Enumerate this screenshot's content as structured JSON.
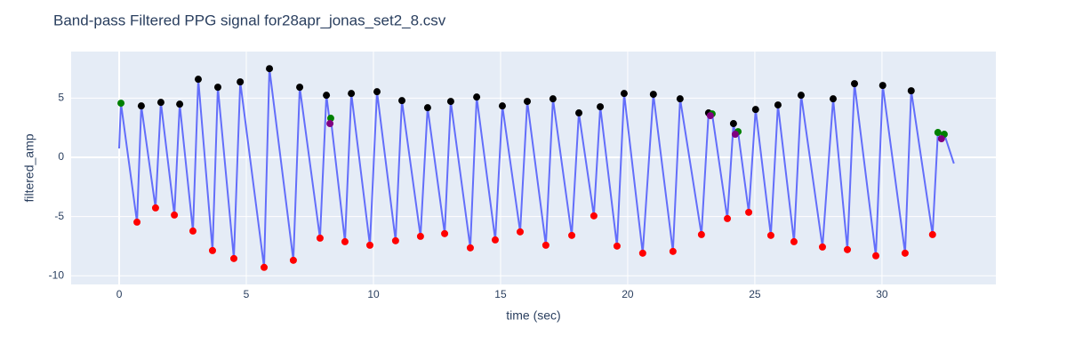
{
  "chart_data": {
    "type": "scatter",
    "title": "Band-pass Filtered PPG signal for28apr_jonas_set2_8.csv",
    "xlabel": "time (sec)",
    "ylabel": "filtered_amp",
    "xlim": [
      -1.89,
      34.48
    ],
    "ylim": [
      -10.73,
      8.93
    ],
    "xticks": [
      0,
      5,
      10,
      15,
      20,
      25,
      30
    ],
    "yticks": [
      -10,
      -5,
      0,
      5
    ],
    "grid": true,
    "zeroline": true,
    "background": "#e5ecf6",
    "series": [
      {
        "mode": "lines",
        "color": "#636efa",
        "x": [
          0,
          0.07,
          0.7,
          0.87,
          1.43,
          1.64,
          2.17,
          2.38,
          2.9,
          3.11,
          3.67,
          3.88,
          4.51,
          4.76,
          5.7,
          5.91,
          6.85,
          7.1,
          7.9,
          8.15,
          8.29,
          8.32,
          8.88,
          9.13,
          9.86,
          10.14,
          10.87,
          11.12,
          11.85,
          12.13,
          12.8,
          13.04,
          13.81,
          14.06,
          14.79,
          15.07,
          15.77,
          16.05,
          16.78,
          17.06,
          17.8,
          18.08,
          18.67,
          18.92,
          19.58,
          19.86,
          20.59,
          21.01,
          21.78,
          22.06,
          22.9,
          23.18,
          23.25,
          23.32,
          23.92,
          24.16,
          24.23,
          24.34,
          24.76,
          25.03,
          25.63,
          25.91,
          26.54,
          26.82,
          27.66,
          28.08,
          28.64,
          28.92,
          29.76,
          30.03,
          30.91,
          31.15,
          31.99,
          32.2,
          32.34,
          32.45,
          32.83
        ],
        "y": [
          0.75,
          4.57,
          -5.47,
          4.34,
          -4.27,
          4.64,
          -4.87,
          4.49,
          -6.22,
          6.59,
          -7.87,
          5.92,
          -8.54,
          6.37,
          -9.29,
          7.49,
          -8.69,
          5.92,
          -6.82,
          5.24,
          2.85,
          3.3,
          -7.12,
          5.39,
          -7.42,
          5.54,
          -7.04,
          4.79,
          -6.67,
          4.19,
          -6.44,
          4.72,
          -7.64,
          5.09,
          -6.97,
          4.34,
          -6.29,
          4.72,
          -7.42,
          4.94,
          -6.59,
          3.75,
          -4.94,
          4.27,
          -7.49,
          5.39,
          -8.09,
          5.32,
          -7.94,
          4.94,
          -6.52,
          3.75,
          3.52,
          3.67,
          -5.17,
          2.85,
          1.95,
          2.17,
          -4.64,
          4.04,
          -6.59,
          4.42,
          -7.12,
          5.24,
          -7.57,
          4.94,
          -7.79,
          6.22,
          -8.31,
          6.07,
          -8.09,
          5.62,
          -6.52,
          2.1,
          1.57,
          1.95,
          -0.52
        ]
      },
      {
        "mode": "markers",
        "color": "#000000",
        "x": [
          0.87,
          1.64,
          2.38,
          3.11,
          3.88,
          4.76,
          5.91,
          7.1,
          8.15,
          9.13,
          10.14,
          11.12,
          12.13,
          13.04,
          14.06,
          15.07,
          16.05,
          17.06,
          18.08,
          18.92,
          19.86,
          21.01,
          22.06,
          23.18,
          24.16,
          25.03,
          25.91,
          26.82,
          28.08,
          28.92,
          30.03,
          31.15
        ],
        "y": [
          4.34,
          4.64,
          4.49,
          6.59,
          5.92,
          6.37,
          7.49,
          5.92,
          5.24,
          5.39,
          5.54,
          4.79,
          4.19,
          4.72,
          5.09,
          4.34,
          4.72,
          4.94,
          3.75,
          4.27,
          5.39,
          5.32,
          4.94,
          3.75,
          2.85,
          4.04,
          4.42,
          5.24,
          4.94,
          6.22,
          6.07,
          5.62
        ]
      },
      {
        "mode": "markers",
        "color": "#ff0000",
        "x": [
          0.7,
          1.43,
          2.17,
          2.9,
          3.67,
          4.51,
          5.7,
          6.85,
          7.9,
          8.88,
          9.86,
          10.87,
          11.85,
          12.8,
          13.81,
          14.79,
          15.77,
          16.78,
          17.8,
          18.67,
          19.58,
          20.59,
          21.78,
          22.9,
          23.92,
          24.76,
          25.63,
          26.54,
          27.66,
          28.64,
          29.76,
          30.91,
          31.99
        ],
        "y": [
          -5.47,
          -4.27,
          -4.87,
          -6.22,
          -7.87,
          -8.54,
          -9.29,
          -8.69,
          -6.82,
          -7.12,
          -7.42,
          -7.04,
          -6.67,
          -6.44,
          -7.64,
          -6.97,
          -6.29,
          -7.42,
          -6.59,
          -4.94,
          -7.49,
          -8.09,
          -7.94,
          -6.52,
          -5.17,
          -4.64,
          -6.59,
          -7.12,
          -7.57,
          -7.79,
          -8.31,
          -8.09,
          -6.52
        ]
      },
      {
        "mode": "markers",
        "color": "#008000",
        "x": [
          0.07,
          8.32,
          23.32,
          24.34,
          32.2,
          32.45
        ],
        "y": [
          4.57,
          3.3,
          3.67,
          2.17,
          2.1,
          1.95
        ]
      },
      {
        "mode": "markers",
        "color": "#800080",
        "x": [
          8.29,
          23.25,
          24.23,
          32.34
        ],
        "y": [
          2.85,
          3.52,
          1.95,
          1.57
        ]
      }
    ]
  }
}
